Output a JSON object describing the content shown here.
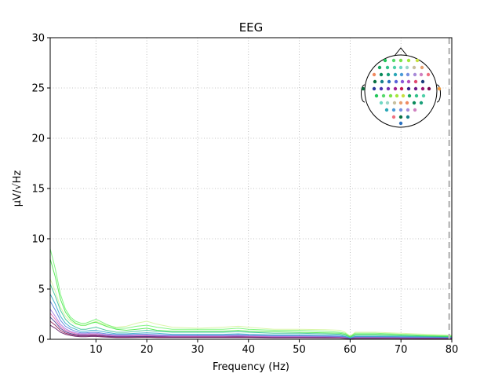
{
  "chart_data": {
    "type": "line",
    "title": "EEG",
    "xlabel": "Frequency (Hz)",
    "ylabel": "µV/√Hz",
    "xlim": [
      1,
      80
    ],
    "ylim": [
      0,
      30
    ],
    "x_ticks": [
      10,
      20,
      30,
      40,
      50,
      60,
      70,
      80
    ],
    "y_ticks": [
      0,
      5,
      10,
      15,
      20,
      25,
      30
    ],
    "grid": true,
    "cutoff_line_x": 79.5,
    "inset": "sensor-topomap top-right",
    "x": [
      1,
      2,
      3,
      4,
      5,
      6,
      7,
      8,
      9,
      10,
      12,
      14,
      16,
      18,
      20,
      22,
      25,
      30,
      35,
      38,
      40,
      45,
      50,
      55,
      58,
      59,
      60,
      61,
      65,
      70,
      75,
      80
    ],
    "series": [
      {
        "color": "#6cf36c",
        "values": [
          9.0,
          7.0,
          4.5,
          3.0,
          2.2,
          1.8,
          1.6,
          1.6,
          1.8,
          2.0,
          1.5,
          1.1,
          1.1,
          1.3,
          1.4,
          1.2,
          1.0,
          1.0,
          1.0,
          1.1,
          1.0,
          0.9,
          0.9,
          0.8,
          0.7,
          0.6,
          0.3,
          0.6,
          0.6,
          0.5,
          0.4,
          0.35
        ]
      },
      {
        "color": "#3fe640",
        "values": [
          8.0,
          6.2,
          4.0,
          2.7,
          2.0,
          1.6,
          1.4,
          1.4,
          1.6,
          1.7,
          1.3,
          1.0,
          0.9,
          1.0,
          1.1,
          0.9,
          0.8,
          0.8,
          0.8,
          0.9,
          0.8,
          0.75,
          0.7,
          0.65,
          0.6,
          0.5,
          0.25,
          0.5,
          0.5,
          0.45,
          0.35,
          0.3
        ]
      },
      {
        "color": "#d4f59a",
        "values": [
          6.0,
          4.8,
          3.2,
          2.3,
          1.8,
          1.5,
          1.4,
          1.4,
          1.6,
          1.8,
          1.4,
          1.2,
          1.3,
          1.6,
          1.8,
          1.5,
          1.2,
          1.1,
          1.2,
          1.3,
          1.2,
          1.0,
          1.0,
          0.95,
          0.9,
          0.7,
          0.3,
          0.7,
          0.7,
          0.6,
          0.5,
          0.4
        ]
      },
      {
        "color": "#30c090",
        "values": [
          5.5,
          4.3,
          2.9,
          2.0,
          1.5,
          1.2,
          1.0,
          1.0,
          1.1,
          1.2,
          0.9,
          0.7,
          0.7,
          0.8,
          0.9,
          0.8,
          0.7,
          0.7,
          0.7,
          0.75,
          0.7,
          0.6,
          0.6,
          0.55,
          0.5,
          0.4,
          0.2,
          0.4,
          0.4,
          0.35,
          0.3,
          0.25
        ]
      },
      {
        "color": "#2aa6c8",
        "values": [
          4.5,
          3.5,
          2.3,
          1.6,
          1.2,
          1.0,
          0.8,
          0.8,
          0.9,
          0.9,
          0.7,
          0.55,
          0.55,
          0.6,
          0.65,
          0.6,
          0.5,
          0.5,
          0.5,
          0.55,
          0.5,
          0.45,
          0.45,
          0.4,
          0.4,
          0.3,
          0.15,
          0.3,
          0.3,
          0.28,
          0.25,
          0.22
        ]
      },
      {
        "color": "#4a7ad8",
        "values": [
          3.8,
          2.9,
          1.9,
          1.3,
          1.0,
          0.8,
          0.65,
          0.65,
          0.7,
          0.7,
          0.55,
          0.45,
          0.45,
          0.5,
          0.5,
          0.45,
          0.4,
          0.4,
          0.4,
          0.45,
          0.4,
          0.35,
          0.35,
          0.32,
          0.3,
          0.25,
          0.12,
          0.25,
          0.25,
          0.22,
          0.2,
          0.18
        ]
      },
      {
        "color": "#a070e0",
        "values": [
          3.0,
          2.3,
          1.5,
          1.05,
          0.8,
          0.65,
          0.55,
          0.55,
          0.6,
          0.6,
          0.45,
          0.38,
          0.38,
          0.4,
          0.42,
          0.38,
          0.35,
          0.35,
          0.35,
          0.38,
          0.35,
          0.3,
          0.3,
          0.28,
          0.26,
          0.2,
          0.1,
          0.2,
          0.2,
          0.18,
          0.16,
          0.15
        ]
      },
      {
        "color": "#e060b0",
        "values": [
          2.6,
          2.0,
          1.3,
          0.9,
          0.7,
          0.55,
          0.48,
          0.48,
          0.5,
          0.5,
          0.4,
          0.32,
          0.32,
          0.35,
          0.36,
          0.33,
          0.3,
          0.3,
          0.3,
          0.32,
          0.3,
          0.26,
          0.26,
          0.24,
          0.22,
          0.18,
          0.09,
          0.18,
          0.18,
          0.16,
          0.14,
          0.13
        ]
      },
      {
        "color": "#3b2a8a",
        "values": [
          2.2,
          1.7,
          1.1,
          0.75,
          0.58,
          0.46,
          0.4,
          0.4,
          0.42,
          0.42,
          0.33,
          0.27,
          0.27,
          0.29,
          0.3,
          0.28,
          0.25,
          0.25,
          0.25,
          0.27,
          0.25,
          0.22,
          0.22,
          0.2,
          0.19,
          0.15,
          0.08,
          0.15,
          0.15,
          0.13,
          0.12,
          0.11
        ]
      },
      {
        "color": "#8a1050",
        "values": [
          1.8,
          1.4,
          0.9,
          0.62,
          0.48,
          0.38,
          0.33,
          0.33,
          0.35,
          0.35,
          0.28,
          0.23,
          0.23,
          0.24,
          0.25,
          0.23,
          0.21,
          0.21,
          0.21,
          0.22,
          0.21,
          0.18,
          0.18,
          0.17,
          0.16,
          0.13,
          0.07,
          0.13,
          0.13,
          0.11,
          0.1,
          0.09
        ]
      },
      {
        "color": "#5a0a5a",
        "values": [
          1.4,
          1.1,
          0.7,
          0.5,
          0.38,
          0.3,
          0.26,
          0.26,
          0.28,
          0.28,
          0.22,
          0.18,
          0.18,
          0.19,
          0.2,
          0.18,
          0.17,
          0.17,
          0.17,
          0.18,
          0.17,
          0.15,
          0.15,
          0.14,
          0.13,
          0.1,
          0.06,
          0.1,
          0.1,
          0.09,
          0.08,
          0.07
        ]
      }
    ],
    "sensor_colors": [
      "#22c65a",
      "#55d96a",
      "#7ae24a",
      "#a4e83a",
      "#c8e040",
      "#18a860",
      "#32c28a",
      "#4fd0a8",
      "#6ed8c4",
      "#9ad6c8",
      "#c8c0a0",
      "#e8a070",
      "#f08a60",
      "#0a8a5a",
      "#1aa07a",
      "#2aa6b6",
      "#4a9ad8",
      "#7a90e0",
      "#a88ad8",
      "#d080c0",
      "#f07080",
      "#087040",
      "#16808a",
      "#2a70c0",
      "#5a62d8",
      "#8a58d8",
      "#b850c0",
      "#e04870",
      "#1a3a7a",
      "#2a3a9a",
      "#4a34b0",
      "#7230b0",
      "#a02090",
      "#c81850",
      "#38208a",
      "#6a1a8a",
      "#9a1270",
      "#7a0850"
    ]
  }
}
